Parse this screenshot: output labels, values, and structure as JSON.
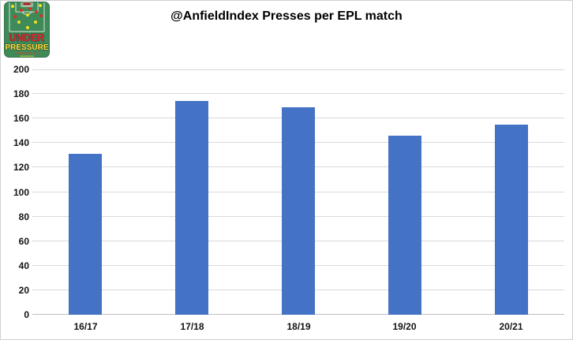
{
  "header": {
    "title": "@AnfieldIndex Presses per EPL match"
  },
  "logo": {
    "alt": "Under Pressure Podcast logo",
    "line1": "UNDER",
    "line2": "PRESSURE",
    "line3": "PODCAST"
  },
  "colors": {
    "bar": "#4472C4",
    "gridline": "#D9D9D9",
    "axis_line": "#BFBFBF",
    "logo_green": "#3E8A58",
    "logo_green_dark": "#2F6E45",
    "logo_red": "#DD2C2C",
    "logo_yellow": "#FFE234",
    "pitch_line": "#E8F0E8"
  },
  "chart_data": {
    "type": "bar",
    "title": "@AnfieldIndex Presses per EPL match",
    "categories": [
      "16/17",
      "17/18",
      "18/19",
      "19/20",
      "20/21"
    ],
    "values": [
      131,
      174,
      169,
      146,
      155
    ],
    "xlabel": "",
    "ylabel": "",
    "ylim": [
      0,
      200
    ],
    "yticks": [
      0,
      20,
      40,
      60,
      80,
      100,
      120,
      140,
      160,
      180,
      200
    ],
    "grid": true,
    "legend": false,
    "bar_color": "#4472C4"
  }
}
